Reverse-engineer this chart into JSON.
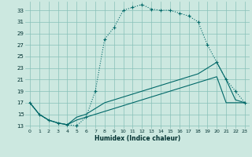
{
  "title": "",
  "xlabel": "Humidex (Indice chaleur)",
  "bg_color": "#cce8e0",
  "grid_color": "#88c0b8",
  "line_color": "#006868",
  "xlim": [
    -0.5,
    23.5
  ],
  "ylim": [
    12.5,
    34.5
  ],
  "yticks": [
    13,
    15,
    17,
    19,
    21,
    23,
    25,
    27,
    29,
    31,
    33
  ],
  "xticks": [
    0,
    1,
    2,
    3,
    4,
    5,
    6,
    7,
    8,
    9,
    10,
    11,
    12,
    13,
    14,
    15,
    16,
    17,
    18,
    19,
    20,
    21,
    22,
    23
  ],
  "line1_x": [
    0,
    1,
    2,
    3,
    4,
    5,
    6,
    7,
    8,
    9,
    10,
    11,
    12,
    13,
    14,
    15,
    16,
    17,
    18,
    19,
    20,
    21,
    22,
    23
  ],
  "line1_y": [
    17,
    15,
    14,
    13.5,
    13.2,
    13.0,
    14.5,
    19,
    28,
    30,
    33,
    33.5,
    34,
    33.2,
    33,
    33,
    32.5,
    32,
    31,
    27,
    24,
    21,
    19,
    17
  ],
  "line2_x": [
    0,
    1,
    2,
    3,
    4,
    5,
    6,
    7,
    8,
    9,
    10,
    11,
    12,
    13,
    14,
    15,
    16,
    17,
    18,
    19,
    20,
    21,
    22,
    23
  ],
  "line2_y": [
    17,
    15,
    14,
    13.5,
    13.2,
    14.5,
    15.0,
    16.0,
    17.0,
    17.5,
    18.0,
    18.5,
    19.0,
    19.5,
    20.0,
    20.5,
    21.0,
    21.5,
    22.0,
    23.0,
    24.0,
    21.0,
    17.5,
    17.0
  ],
  "line3_x": [
    0,
    1,
    2,
    3,
    4,
    5,
    6,
    7,
    8,
    9,
    10,
    11,
    12,
    13,
    14,
    15,
    16,
    17,
    18,
    19,
    20,
    21,
    22,
    23
  ],
  "line3_y": [
    17,
    15,
    14,
    13.5,
    13.2,
    14.0,
    14.5,
    15.0,
    15.5,
    16.0,
    16.5,
    17.0,
    17.5,
    18.0,
    18.5,
    19.0,
    19.5,
    20.0,
    20.5,
    21.0,
    21.5,
    17.0,
    17.0,
    17.0
  ]
}
